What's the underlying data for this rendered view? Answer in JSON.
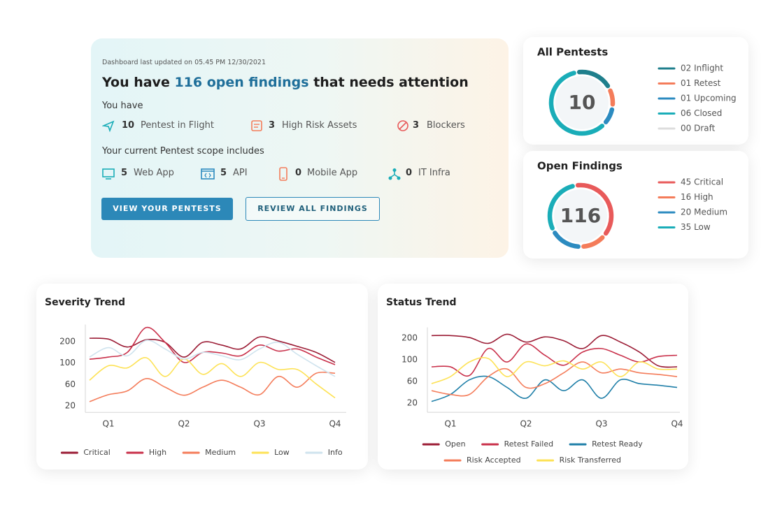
{
  "hero": {
    "updated": "Dashboard last updated on 05.45 PM 12/30/2021",
    "headline": {
      "before": "You have ",
      "highlight": "116 open findings",
      "after": " that needs attention"
    },
    "you_have": "You have",
    "stats": [
      {
        "count": 10,
        "label": "Pentest in Flight"
      },
      {
        "count": 3,
        "label": "High Risk Assets"
      },
      {
        "count": 3,
        "label": "Blockers"
      }
    ],
    "scope_title": "Your current Pentest scope includes",
    "scope": [
      {
        "count": 5,
        "label": "Web App"
      },
      {
        "count": 5,
        "label": "API"
      },
      {
        "count": 0,
        "label": "Mobile App"
      },
      {
        "count": 0,
        "label": "IT Infra"
      }
    ],
    "buttons": [
      "VIEW YOUR PENTESTS",
      "REVIEW ALL FINDINGS"
    ]
  },
  "chart_data": [
    {
      "type": "donut",
      "title": "All Pentests",
      "total": 10,
      "items": [
        {
          "value": 2,
          "label": "02 Inflight",
          "color": "#1f7f8c"
        },
        {
          "value": 1,
          "label": "01 Retest",
          "color": "#f47c5a"
        },
        {
          "value": 1,
          "label": "01 Upcoming",
          "color": "#2c8bc0"
        },
        {
          "value": 6,
          "label": "06 Closed",
          "color": "#1aadb8"
        },
        {
          "value": 0,
          "label": "00 Draft",
          "color": "#dddddd"
        }
      ]
    },
    {
      "type": "donut",
      "title": "Open Findings",
      "total": 116,
      "items": [
        {
          "value": 45,
          "label": "45 Critical",
          "color": "#e85a5a"
        },
        {
          "value": 16,
          "label": "16 High",
          "color": "#f47c5a"
        },
        {
          "value": 20,
          "label": "20 Medium",
          "color": "#2c8bc0"
        },
        {
          "value": 35,
          "label": "35 Low",
          "color": "#1aadb8"
        }
      ]
    },
    {
      "type": "line",
      "title": "Severity Trend",
      "categories": [
        null,
        "Q1",
        null,
        null,
        null,
        "Q2",
        null,
        null,
        null,
        "Q3",
        null,
        null,
        null,
        "Q4"
      ],
      "ylim": [
        8,
        280
      ],
      "yticks": [
        20,
        60,
        100,
        200
      ],
      "series": [
        {
          "name": "Critical",
          "color": "#9b1c35",
          "values": [
            216,
            212,
            175,
            209,
            197,
            128,
            197,
            184,
            166,
            222,
            203,
            178,
            150,
            103
          ]
        },
        {
          "name": "High",
          "color": "#c9304a",
          "values": [
            118,
            128,
            150,
            266,
            197,
            103,
            150,
            147,
            134,
            184,
            156,
            166,
            128,
            97
          ]
        },
        {
          "name": "Medium",
          "color": "#f47c5a",
          "values": [
            28,
            41,
            48,
            71,
            55,
            40,
            55,
            68,
            55,
            41,
            75,
            55,
            81,
            81
          ]
        },
        {
          "name": "Low",
          "color": "#fde256",
          "values": [
            68,
            95,
            91,
            125,
            75,
            119,
            79,
            99,
            75,
            103,
            88,
            88,
            61,
            35
          ]
        },
        {
          "name": "Info",
          "color": "#cfe3ee",
          "values": [
            128,
            172,
            134,
            206,
            166,
            119,
            150,
            134,
            116,
            166,
            197,
            141,
            95,
            75
          ]
        }
      ]
    },
    {
      "type": "line",
      "title": "Status Trend",
      "categories": [
        null,
        "Q1",
        null,
        null,
        null,
        "Q2",
        null,
        null,
        null,
        "Q3",
        null,
        null,
        null,
        "Q4"
      ],
      "ylim": [
        3,
        250
      ],
      "yticks": [
        20,
        60,
        100,
        200
      ],
      "series": [
        {
          "name": "Open",
          "color": "#9b1c35",
          "values": [
            212,
            212,
            203,
            176,
            218,
            182,
            206,
            188,
            152,
            212,
            182,
            136,
            89,
            87
          ]
        },
        {
          "name": "Retest Failed",
          "color": "#c9304a",
          "values": [
            87,
            87,
            71,
            152,
            96,
            173,
            121,
            90,
            136,
            152,
            121,
            96,
            115,
            121
          ]
        },
        {
          "name": "Retest Ready",
          "color": "#1f7fa8",
          "values": [
            23,
            36,
            63,
            69,
            49,
            29,
            63,
            43,
            63,
            29,
            63,
            56,
            53,
            49
          ]
        },
        {
          "name": "Risk Accepted",
          "color": "#f47c5a",
          "values": [
            43,
            36,
            36,
            69,
            83,
            49,
            56,
            76,
            96,
            76,
            83,
            76,
            73,
            69
          ]
        },
        {
          "name": "Risk Transferred",
          "color": "#fde256",
          "values": [
            56,
            69,
            96,
            106,
            69,
            96,
            89,
            98,
            83,
            96,
            69,
            96,
            83,
            83
          ]
        }
      ]
    }
  ]
}
